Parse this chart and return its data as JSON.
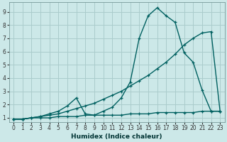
{
  "background_color": "#cce8e8",
  "grid_color": "#aacccc",
  "line_color": "#006060",
  "xlabel": "Humidex (Indice chaleur)",
  "xlim": [
    -0.5,
    23.5
  ],
  "ylim": [
    0.7,
    9.7
  ],
  "xticks": [
    0,
    1,
    2,
    3,
    4,
    5,
    6,
    7,
    8,
    9,
    10,
    11,
    12,
    13,
    14,
    15,
    16,
    17,
    18,
    19,
    20,
    21,
    22,
    23
  ],
  "yticks": [
    1,
    2,
    3,
    4,
    5,
    6,
    7,
    8,
    9
  ],
  "series": [
    {
      "x": [
        0,
        1,
        2,
        3,
        4,
        5,
        6,
        7,
        8,
        9,
        10,
        11,
        12,
        13,
        14,
        15,
        16,
        17,
        18,
        19,
        20,
        21,
        22,
        23
      ],
      "y": [
        0.9,
        0.9,
        1.0,
        1.0,
        1.0,
        1.1,
        1.1,
        1.1,
        1.2,
        1.2,
        1.2,
        1.2,
        1.2,
        1.3,
        1.3,
        1.3,
        1.4,
        1.4,
        1.4,
        1.4,
        1.4,
        1.5,
        1.5,
        1.5
      ]
    },
    {
      "x": [
        0,
        1,
        2,
        3,
        4,
        5,
        6,
        7,
        8,
        9,
        10,
        11,
        12,
        13,
        14,
        15,
        16,
        17,
        18,
        19,
        20,
        21,
        22,
        23
      ],
      "y": [
        0.9,
        0.9,
        1.0,
        1.1,
        1.2,
        1.3,
        1.5,
        1.7,
        1.9,
        2.1,
        2.4,
        2.7,
        3.0,
        3.4,
        3.8,
        4.2,
        4.7,
        5.2,
        5.8,
        6.5,
        7.0,
        7.4,
        7.5,
        1.5
      ]
    },
    {
      "x": [
        0,
        1,
        2,
        3,
        4,
        5,
        6,
        7,
        8,
        9,
        10,
        11,
        12,
        13,
        14,
        15,
        16,
        17,
        18,
        19,
        20,
        21,
        22,
        23
      ],
      "y": [
        0.9,
        0.9,
        1.0,
        1.1,
        1.3,
        1.5,
        1.9,
        2.5,
        1.3,
        1.2,
        1.5,
        1.8,
        2.5,
        3.7,
        7.0,
        8.7,
        9.3,
        8.7,
        8.2,
        5.9,
        5.2,
        3.1,
        1.5,
        1.5
      ]
    }
  ]
}
